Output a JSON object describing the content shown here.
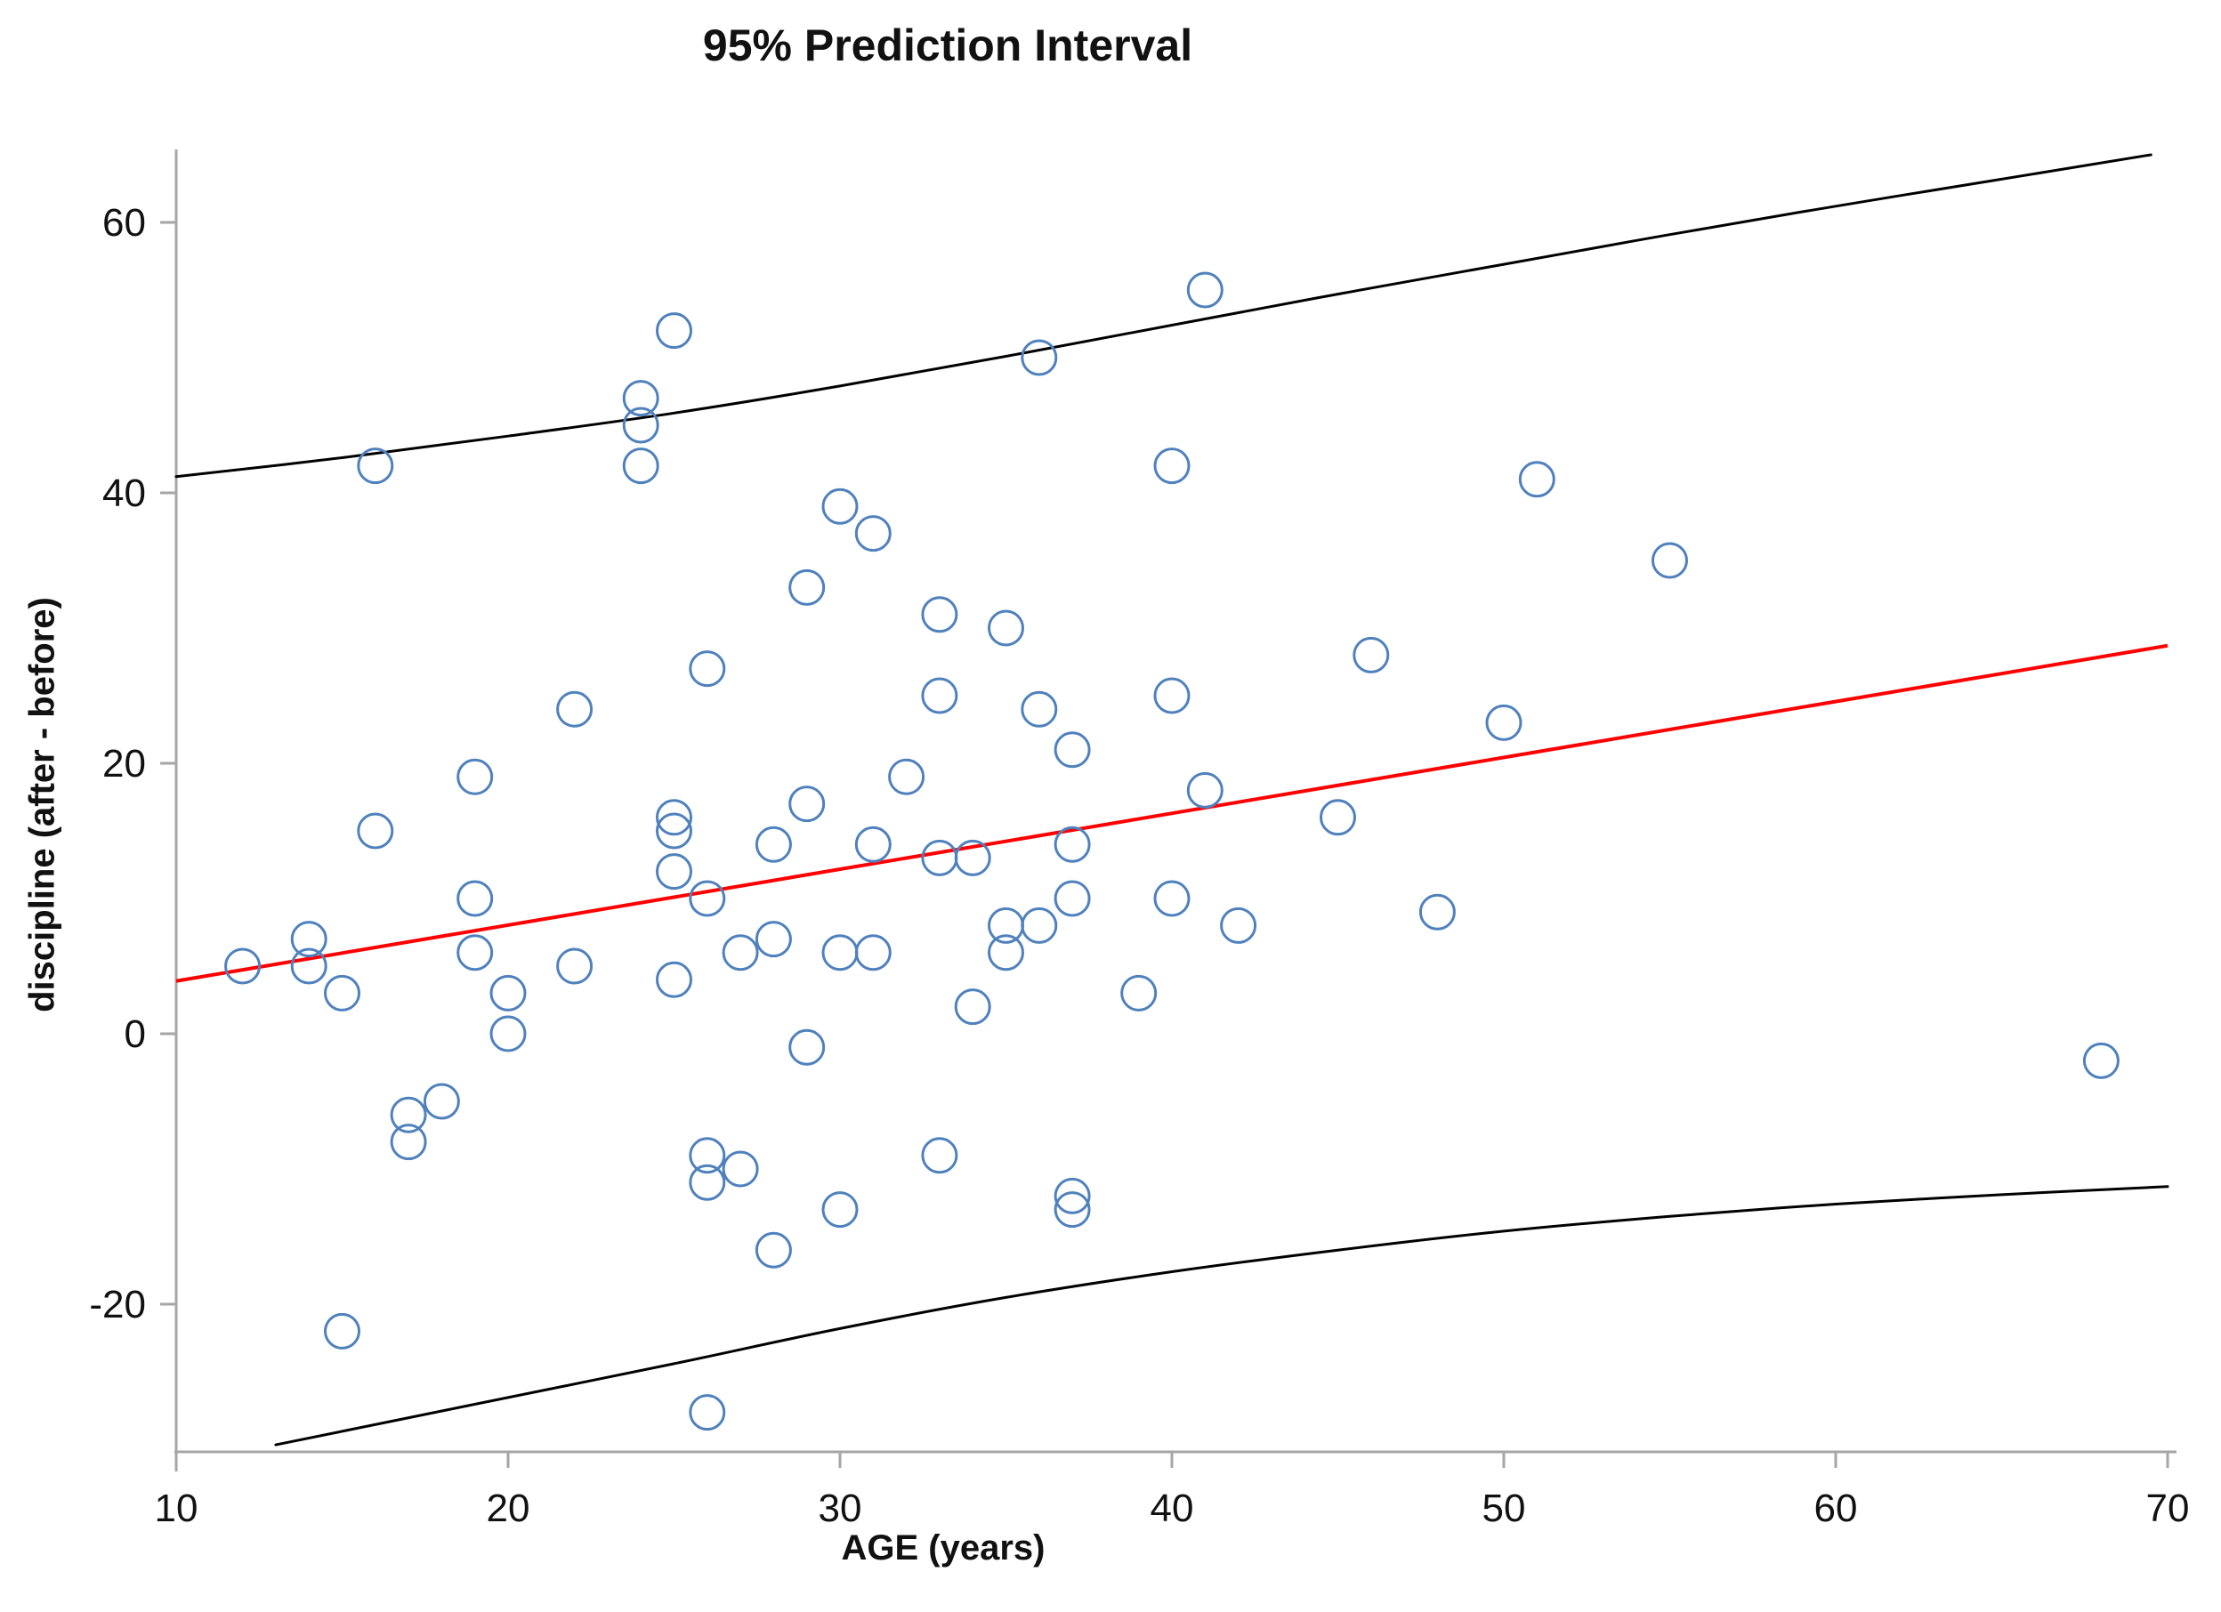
{
  "title": "95% Prediction Interval",
  "chart_data": {
    "type": "scatter",
    "title": "95% Prediction Interval",
    "xlabel": "AGE (years)",
    "ylabel": "discipline (after - before)",
    "x_ticks": [
      10,
      20,
      30,
      40,
      50,
      60,
      70
    ],
    "y_ticks": [
      60,
      40,
      20,
      0,
      -20
    ],
    "xlim": [
      10,
      70
    ],
    "ylim": [
      -31,
      65
    ],
    "grid": false,
    "legend": "none",
    "marker": {
      "shape": "open-circle",
      "color": "#4f81bd",
      "radius_px": 19,
      "stroke_px": 3
    },
    "axis_color": "#a6a6a6",
    "tick_label_color": "#111111",
    "points": [
      [
        12,
        5
      ],
      [
        14,
        7
      ],
      [
        14,
        5
      ],
      [
        15,
        3
      ],
      [
        15,
        -22
      ],
      [
        16,
        42
      ],
      [
        16,
        15
      ],
      [
        17,
        -6
      ],
      [
        17,
        -8
      ],
      [
        18,
        -5
      ],
      [
        19,
        19
      ],
      [
        19,
        10
      ],
      [
        19,
        6
      ],
      [
        20,
        3
      ],
      [
        20,
        0
      ],
      [
        22,
        24
      ],
      [
        22,
        5
      ],
      [
        24,
        47
      ],
      [
        24,
        45
      ],
      [
        24,
        42
      ],
      [
        25,
        52
      ],
      [
        25,
        16
      ],
      [
        25,
        15
      ],
      [
        25,
        12
      ],
      [
        25,
        4
      ],
      [
        26,
        27
      ],
      [
        26,
        10
      ],
      [
        26,
        -9
      ],
      [
        26,
        -11
      ],
      [
        26,
        -28
      ],
      [
        27,
        6
      ],
      [
        27,
        -10
      ],
      [
        28,
        14
      ],
      [
        28,
        7
      ],
      [
        28,
        -16
      ],
      [
        29,
        33
      ],
      [
        29,
        17
      ],
      [
        29,
        -1
      ],
      [
        30,
        39
      ],
      [
        30,
        6
      ],
      [
        30,
        -13
      ],
      [
        31,
        37
      ],
      [
        31,
        14
      ],
      [
        31,
        6
      ],
      [
        32,
        19
      ],
      [
        33,
        31
      ],
      [
        33,
        25
      ],
      [
        33,
        13
      ],
      [
        33,
        -9
      ],
      [
        34,
        13
      ],
      [
        34,
        2
      ],
      [
        35,
        30
      ],
      [
        35,
        8
      ],
      [
        35,
        6
      ],
      [
        36,
        50
      ],
      [
        36,
        24
      ],
      [
        36,
        8
      ],
      [
        37,
        21
      ],
      [
        37,
        14
      ],
      [
        37,
        10
      ],
      [
        37,
        -12
      ],
      [
        37,
        -13
      ],
      [
        39,
        3
      ],
      [
        40,
        42
      ],
      [
        40,
        25
      ],
      [
        40,
        10
      ],
      [
        41,
        55
      ],
      [
        41,
        18
      ],
      [
        42,
        8
      ],
      [
        45,
        16
      ],
      [
        46,
        28
      ],
      [
        48,
        9
      ],
      [
        50,
        23
      ],
      [
        51,
        41
      ],
      [
        55,
        35
      ],
      [
        68,
        -2
      ]
    ],
    "fit_line": {
      "name": "regression line",
      "color": "#ff0000",
      "stroke_px": 4,
      "x": [
        10,
        70
      ],
      "y": [
        3.9,
        28.7
      ]
    },
    "upper_bound": {
      "name": "upper 95% prediction limit",
      "color": "#000000",
      "stroke_px": 3,
      "points": [
        [
          10,
          41.2
        ],
        [
          15,
          42.6
        ],
        [
          20,
          44.2
        ],
        [
          25,
          45.9
        ],
        [
          30,
          47.9
        ],
        [
          35,
          50.1
        ],
        [
          40,
          52.4
        ],
        [
          45,
          54.7
        ],
        [
          50,
          56.9
        ],
        [
          55,
          59.1
        ],
        [
          60,
          61.2
        ],
        [
          65,
          63.2
        ],
        [
          69.5,
          65.0
        ]
      ]
    },
    "lower_bound": {
      "name": "lower 95% prediction limit",
      "color": "#000000",
      "stroke_px": 3,
      "points": [
        [
          13,
          -30.4
        ],
        [
          15,
          -29.4
        ],
        [
          20,
          -26.9
        ],
        [
          25,
          -24.4
        ],
        [
          30,
          -21.8
        ],
        [
          35,
          -19.5
        ],
        [
          40,
          -17.6
        ],
        [
          45,
          -16.0
        ],
        [
          50,
          -14.6
        ],
        [
          55,
          -13.5
        ],
        [
          60,
          -12.6
        ],
        [
          65,
          -11.9
        ],
        [
          70,
          -11.3
        ]
      ]
    }
  }
}
